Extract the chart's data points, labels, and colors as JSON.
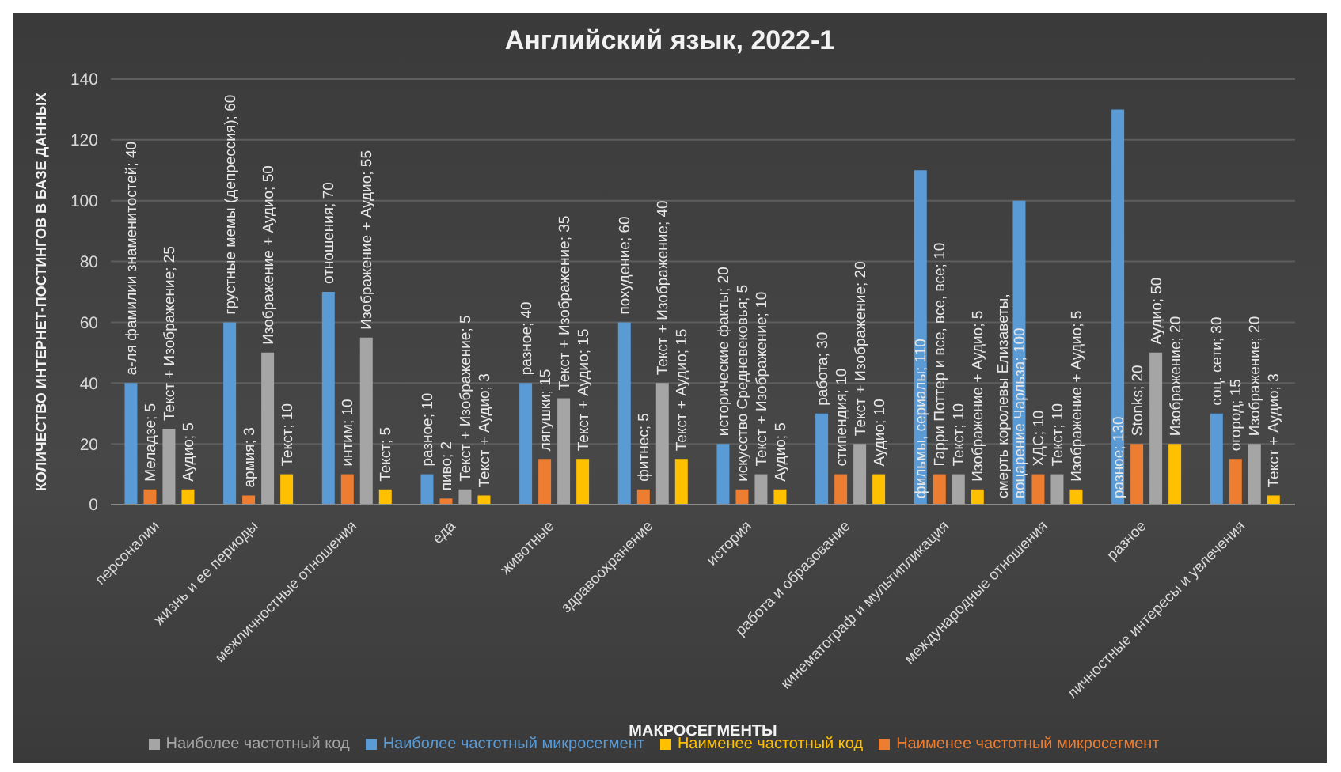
{
  "chart_data": {
    "type": "bar",
    "title": "Английский язык, 2022-1",
    "xlabel": "МАКРОСЕГМЕНТЫ",
    "ylabel": "КОЛИЧЕСТВО ИНТЕРНЕТ-ПОСТИНГОВ В БАЗЕ ДАННЫХ",
    "categories": [
      "персоналии",
      "жизнь и ее периоды",
      "межличностные отношения",
      "еда",
      "животные",
      "здравоохранение",
      "история",
      "работа и образование",
      "кинематограф и мультипликация",
      "международные отношения",
      "разное",
      "личностные интересы и увлечения"
    ],
    "series": [
      {
        "name": "Наиболее частотный микросегмент",
        "color": "#5b9bd5",
        "values": [
          40,
          60,
          70,
          10,
          40,
          60,
          20,
          30,
          110,
          100,
          130,
          30
        ],
        "value_labels": [
          "а-ля фамилии знаменитостей; 40",
          "грустные мемы (депрессия); 60",
          "отношения; 70",
          "разное; 10",
          "разное; 40",
          "похудение; 60",
          "исторические факты; 20",
          "работа; 30",
          "фильмы, сериалы; 110",
          "смерть королевы Елизаветы, воцарение Чарльза; 100",
          "разное; 130",
          "соц. сети; 30"
        ]
      },
      {
        "name": "Наименее частотный микросегмент",
        "color": "#ed7d31",
        "values": [
          5,
          3,
          10,
          2,
          15,
          5,
          5,
          10,
          10,
          10,
          20,
          15
        ],
        "value_labels": [
          "Меладзе; 5",
          "армия; 3",
          "интим; 10",
          "пиво; 2",
          "лягушки; 15",
          "фитнес; 5",
          "искусство Средневековья; 5",
          "стипендия; 10",
          "Гарри Поттер и все, все, все; 10",
          "ХДС; 10",
          "Stonks; 20",
          "огород; 15"
        ]
      },
      {
        "name": "Наиболее частотный код",
        "color": "#a5a5a5",
        "values": [
          25,
          50,
          55,
          5,
          35,
          40,
          10,
          20,
          10,
          10,
          50,
          20
        ],
        "value_labels": [
          "Текст + Изображение; 25",
          "Изображение + Аудио; 50",
          "Изображение + Аудио; 55",
          "Текст + Изображение; 5",
          "Текст + Изображение; 35",
          "Текст + Изображение; 40",
          "Текст + Изображение; 10",
          "Текст + Изображение; 20",
          "Текст; 10",
          "Текст; 10",
          "Аудио; 50",
          "Изображение; 20"
        ]
      },
      {
        "name": "Наименее частотный код",
        "color": "#ffc000",
        "values": [
          5,
          10,
          5,
          3,
          15,
          15,
          5,
          10,
          5,
          5,
          20,
          3
        ],
        "value_labels": [
          "Аудио; 5",
          "Текст; 10",
          "Текст; 5",
          "Текст + Аудио; 3",
          "Текст + Аудио; 15",
          "Текст + Аудио; 15",
          "Аудио; 5",
          "Аудио; 10",
          "Изображение + Аудио; 5",
          "Изображение + Аудио; 5",
          "Изображение; 20",
          "Текст + Аудио; 3"
        ]
      }
    ],
    "ylim": [
      0,
      140
    ],
    "yticks": [
      0,
      20,
      40,
      60,
      80,
      100,
      120,
      140
    ],
    "grid": "y",
    "legend": "bottom"
  }
}
